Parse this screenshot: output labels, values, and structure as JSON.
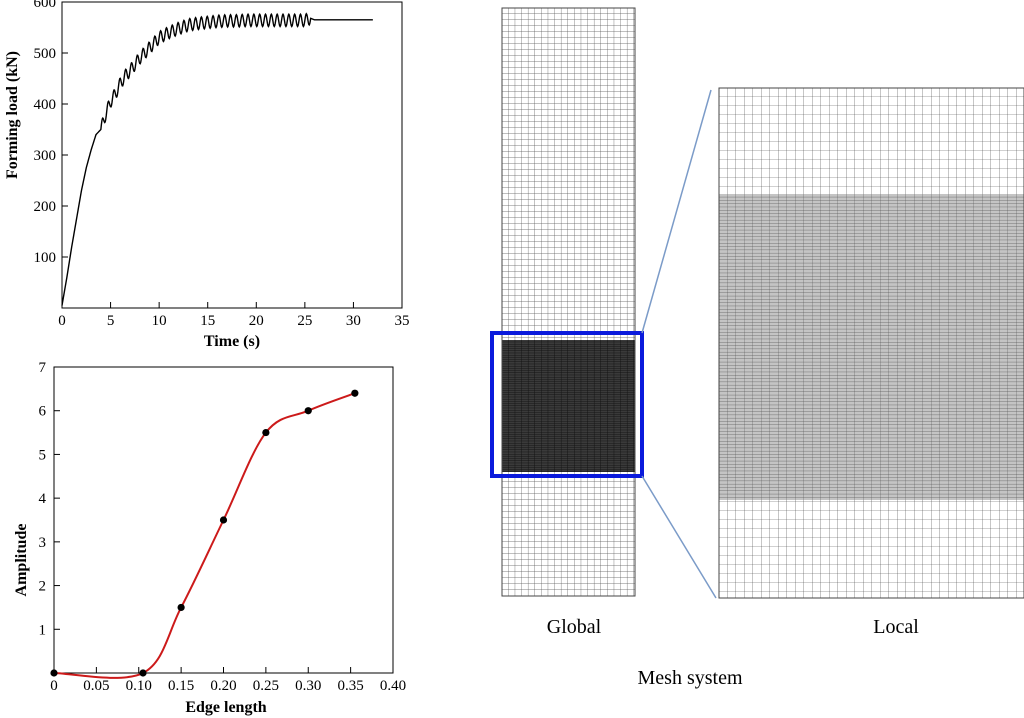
{
  "chart_data": [
    {
      "type": "line",
      "title": "",
      "xlabel": "Time (s)",
      "ylabel": "Forming load (kN)",
      "xlim": [
        0,
        35
      ],
      "ylim": [
        0,
        600
      ],
      "xticks": [
        "0",
        "5",
        "10",
        "15",
        "20",
        "25",
        "30",
        "35"
      ],
      "yticks": [
        "100",
        "200",
        "300",
        "400",
        "500",
        "600"
      ],
      "grid": false,
      "series": [
        {
          "color": "#000000",
          "x": [
            0,
            0.5,
            1,
            1.5,
            2,
            2.5,
            3,
            3.5,
            4,
            4.5,
            5,
            5.5,
            6,
            6.5,
            7,
            8,
            9,
            10,
            11,
            12,
            13,
            14,
            15,
            16,
            17,
            18,
            19,
            20,
            21,
            22,
            23,
            24,
            25,
            25.6,
            26,
            32
          ],
          "y": [
            5,
            60,
            120,
            175,
            230,
            275,
            310,
            340,
            350,
            380,
            405,
            420,
            440,
            455,
            465,
            490,
            510,
            530,
            540,
            548,
            555,
            558,
            560,
            562,
            563,
            563,
            564,
            564,
            564,
            564,
            564,
            564,
            564,
            568,
            565,
            565
          ],
          "oscillation": {
            "from": 4,
            "to": 25.6,
            "amplitude": 12,
            "period": 0.6
          }
        }
      ]
    },
    {
      "type": "line",
      "title": "",
      "xlabel": "Edge length",
      "ylabel": "Amplitude",
      "xlim": [
        0,
        0.4
      ],
      "ylim": [
        0,
        7
      ],
      "xticks": [
        "0",
        "0.05",
        "0.10",
        "0.15",
        "0.20",
        "0.25",
        "0.30",
        "0.35",
        "0.40"
      ],
      "yticks": [
        "1",
        "2",
        "3",
        "4",
        "5",
        "6",
        "7"
      ],
      "grid": false,
      "series": [
        {
          "color": "#cc1a1a",
          "marker_color": "#000000",
          "x": [
            0,
            0.105,
            0.15,
            0.2,
            0.25,
            0.3,
            0.355
          ],
          "y": [
            0,
            0,
            1.5,
            3.5,
            5.5,
            6.0,
            6.4
          ]
        }
      ]
    }
  ],
  "mesh": {
    "global_label": "Global",
    "local_label": "Local",
    "caption": "Mesh system",
    "highlight_color": "#0a1adc",
    "connector_color": "#7b9bc8"
  }
}
